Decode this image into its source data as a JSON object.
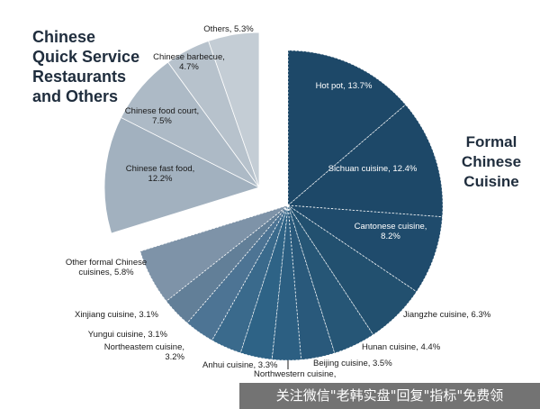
{
  "groups": {
    "left_title": "Chinese\nQuick Service\nRestaurants\nand Others",
    "right_title": "Formal\nChinese\nCuisine"
  },
  "watermark": "关注微信\"老韩实盘\"回复\"指标\"免费领",
  "colors": {
    "formal_dark": "#1b4363",
    "formal_mid": "#2c6486",
    "formal_light": "#5d7f9a",
    "qsr": "#a9b7c3",
    "qsr_light": "#c3ccd4"
  },
  "chart_data": {
    "type": "pie",
    "title": "",
    "slices": [
      {
        "label": "Hot pot",
        "value": 13.7,
        "text": "Hot pot, 13.7%",
        "group": "Formal Chinese Cuisine",
        "color": "#1d4868"
      },
      {
        "label": "Sichuan cuisine",
        "value": 12.4,
        "text": "Sichuan cuisine, 12.4%",
        "group": "Formal Chinese Cuisine",
        "color": "#1d4868"
      },
      {
        "label": "Cantonese cuisine",
        "value": 8.2,
        "text": "Cantonese cuisine,\n8.2%",
        "group": "Formal Chinese Cuisine",
        "color": "#1f4b6c"
      },
      {
        "label": "Jiangzhe cuisine",
        "value": 6.3,
        "text": "Jiangzhe cuisine, 6.3%",
        "group": "Formal Chinese Cuisine",
        "color": "#22506f"
      },
      {
        "label": "Hunan cuisine",
        "value": 4.4,
        "text": "Hunan cuisine, 4.4%",
        "group": "Formal Chinese Cuisine",
        "color": "#265676"
      },
      {
        "label": "Beijing cuisine",
        "value": 3.5,
        "text": "Beijing cuisine, 3.5%",
        "group": "Formal Chinese Cuisine",
        "color": "#29597b"
      },
      {
        "label": "Northwestern cuisine",
        "value": 3.0,
        "text": "Northwestern cuisine,",
        "group": "Formal Chinese Cuisine",
        "color": "#2c5f82"
      },
      {
        "label": "Anhui cuisine",
        "value": 3.3,
        "text": "Anhui cuisine, 3.3%",
        "group": "Formal Chinese Cuisine",
        "color": "#2e6386"
      },
      {
        "label": "Northeastern cuisine",
        "value": 3.2,
        "text": "Northeastem cuisine,\n3.2%",
        "group": "Formal Chinese Cuisine",
        "color": "#3a6a8c"
      },
      {
        "label": "Yungui cuisine",
        "value": 3.1,
        "text": "Yungui cuisine, 3.1%",
        "group": "Formal Chinese Cuisine",
        "color": "#4d7494"
      },
      {
        "label": "Xinjiang cuisine",
        "value": 3.1,
        "text": "Xinjiang cuisine, 3.1%",
        "group": "Formal Chinese Cuisine",
        "color": "#627f98"
      },
      {
        "label": "Other formal Chinese cuisines",
        "value": 5.8,
        "text": "Other formal Chinese\ncuisines, 5.8%",
        "group": "Formal Chinese Cuisine",
        "color": "#7e93a8"
      },
      {
        "label": "Chinese fast food",
        "value": 12.2,
        "text": "Chinese fast food,\n12.2%",
        "group": "Chinese Quick Service Restaurants and Others",
        "color": "#a2b1bf"
      },
      {
        "label": "Chinese food court",
        "value": 7.5,
        "text": "Chinese food court,\n7.5%",
        "group": "Chinese Quick Service Restaurants and Others",
        "color": "#adbac6"
      },
      {
        "label": "Chinese barbecue",
        "value": 4.7,
        "text": "Chinese barbecue,\n4.7%",
        "group": "Chinese Quick Service Restaurants and Others",
        "color": "#b7c2cc"
      },
      {
        "label": "Others",
        "value": 5.3,
        "text": "Others, 5.3%",
        "group": "Chinese Quick Service Restaurants and Others",
        "color": "#c4cdd5"
      }
    ]
  }
}
